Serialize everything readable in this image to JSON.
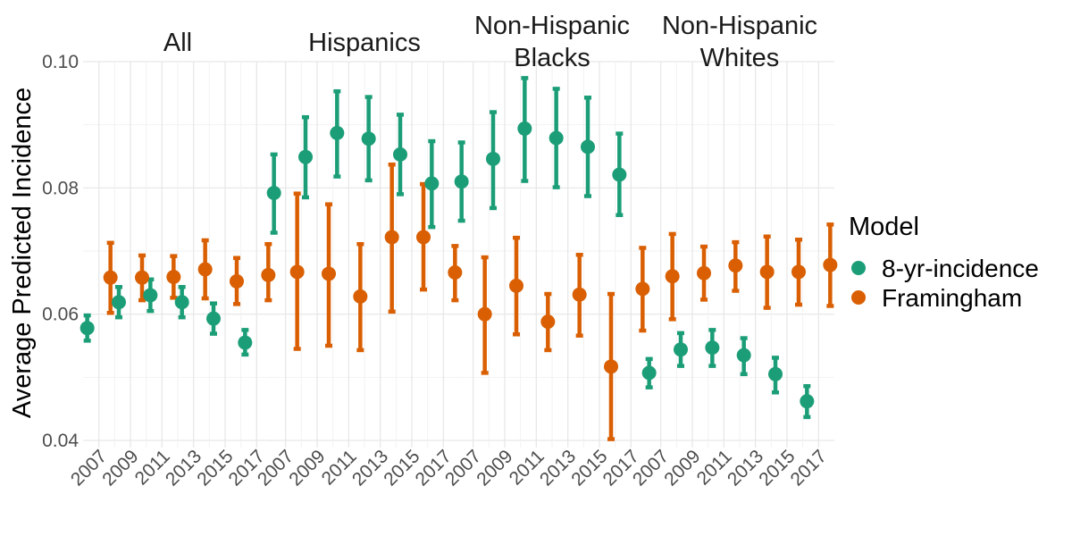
{
  "chart_data": {
    "type": "scatter",
    "subtype": "point-with-errorbars, faceted",
    "ylabel": "Average Predicted Incidence",
    "ylim": [
      0.04,
      0.1
    ],
    "yticks": [
      "0.04",
      "0.06",
      "0.08",
      "0.10"
    ],
    "xticks": [
      "2007",
      "2009",
      "2011",
      "2013",
      "2015",
      "2017"
    ],
    "grid": true,
    "legend": {
      "title": "Model",
      "position": "right"
    },
    "series": [
      {
        "name": "8-yr-incidence",
        "color": "#1b9e77"
      },
      {
        "name": "Framingham",
        "color": "#d95f02"
      }
    ],
    "panels": [
      {
        "title": "All",
        "points": [
          {
            "series": "8-yr-incidence",
            "x": 2007,
            "y": 0.0578,
            "lo": 0.0558,
            "hi": 0.0598
          },
          {
            "series": "Framingham",
            "x": 2007,
            "y": 0.0658,
            "lo": 0.0602,
            "hi": 0.0713
          },
          {
            "series": "8-yr-incidence",
            "x": 2009,
            "y": 0.0619,
            "lo": 0.0595,
            "hi": 0.0643
          },
          {
            "series": "Framingham",
            "x": 2009,
            "y": 0.0658,
            "lo": 0.0622,
            "hi": 0.0693
          },
          {
            "series": "8-yr-incidence",
            "x": 2011,
            "y": 0.063,
            "lo": 0.0605,
            "hi": 0.0655
          },
          {
            "series": "Framingham",
            "x": 2011,
            "y": 0.0659,
            "lo": 0.0626,
            "hi": 0.0692
          },
          {
            "series": "8-yr-incidence",
            "x": 2013,
            "y": 0.0619,
            "lo": 0.0595,
            "hi": 0.0643
          },
          {
            "series": "Framingham",
            "x": 2013,
            "y": 0.0671,
            "lo": 0.0625,
            "hi": 0.0717
          },
          {
            "series": "8-yr-incidence",
            "x": 2015,
            "y": 0.0593,
            "lo": 0.0569,
            "hi": 0.0617
          },
          {
            "series": "Framingham",
            "x": 2015,
            "y": 0.0652,
            "lo": 0.0616,
            "hi": 0.0689
          },
          {
            "series": "8-yr-incidence",
            "x": 2017,
            "y": 0.0555,
            "lo": 0.0536,
            "hi": 0.0575
          },
          {
            "series": "Framingham",
            "x": 2017,
            "y": 0.0662,
            "lo": 0.0622,
            "hi": 0.0711
          }
        ]
      },
      {
        "title": "Hispanics",
        "points": [
          {
            "series": "8-yr-incidence",
            "x": 2007,
            "y": 0.0792,
            "lo": 0.0729,
            "hi": 0.0853
          },
          {
            "series": "Framingham",
            "x": 2007,
            "y": 0.0667,
            "lo": 0.0545,
            "hi": 0.0791
          },
          {
            "series": "8-yr-incidence",
            "x": 2009,
            "y": 0.0849,
            "lo": 0.0785,
            "hi": 0.0912
          },
          {
            "series": "Framingham",
            "x": 2009,
            "y": 0.0664,
            "lo": 0.055,
            "hi": 0.0774
          },
          {
            "series": "8-yr-incidence",
            "x": 2011,
            "y": 0.0887,
            "lo": 0.0818,
            "hi": 0.0953
          },
          {
            "series": "Framingham",
            "x": 2011,
            "y": 0.0628,
            "lo": 0.0543,
            "hi": 0.0711
          },
          {
            "series": "8-yr-incidence",
            "x": 2013,
            "y": 0.0878,
            "lo": 0.0812,
            "hi": 0.0944
          },
          {
            "series": "Framingham",
            "x": 2013,
            "y": 0.0722,
            "lo": 0.0604,
            "hi": 0.0837
          },
          {
            "series": "8-yr-incidence",
            "x": 2015,
            "y": 0.0853,
            "lo": 0.079,
            "hi": 0.0916
          },
          {
            "series": "Framingham",
            "x": 2015,
            "y": 0.0722,
            "lo": 0.0639,
            "hi": 0.0806
          },
          {
            "series": "8-yr-incidence",
            "x": 2017,
            "y": 0.0807,
            "lo": 0.0738,
            "hi": 0.0874
          },
          {
            "series": "Framingham",
            "x": 2017,
            "y": 0.0666,
            "lo": 0.0622,
            "hi": 0.0708
          }
        ]
      },
      {
        "title": "Non-Hispanic Blacks",
        "points": [
          {
            "series": "8-yr-incidence",
            "x": 2007,
            "y": 0.081,
            "lo": 0.0748,
            "hi": 0.0872
          },
          {
            "series": "Framingham",
            "x": 2007,
            "y": 0.06,
            "lo": 0.0507,
            "hi": 0.069
          },
          {
            "series": "8-yr-incidence",
            "x": 2009,
            "y": 0.0846,
            "lo": 0.0768,
            "hi": 0.092
          },
          {
            "series": "Framingham",
            "x": 2009,
            "y": 0.0645,
            "lo": 0.0568,
            "hi": 0.0721
          },
          {
            "series": "8-yr-incidence",
            "x": 2011,
            "y": 0.0894,
            "lo": 0.0811,
            "hi": 0.0974
          },
          {
            "series": "Framingham",
            "x": 2011,
            "y": 0.0588,
            "lo": 0.0543,
            "hi": 0.0632
          },
          {
            "series": "8-yr-incidence",
            "x": 2013,
            "y": 0.0879,
            "lo": 0.0801,
            "hi": 0.0957
          },
          {
            "series": "Framingham",
            "x": 2013,
            "y": 0.0631,
            "lo": 0.0566,
            "hi": 0.0694
          },
          {
            "series": "8-yr-incidence",
            "x": 2015,
            "y": 0.0865,
            "lo": 0.0787,
            "hi": 0.0943
          },
          {
            "series": "Framingham",
            "x": 2015,
            "y": 0.0517,
            "lo": 0.0402,
            "hi": 0.0632
          },
          {
            "series": "8-yr-incidence",
            "x": 2017,
            "y": 0.0821,
            "lo": 0.0757,
            "hi": 0.0886
          },
          {
            "series": "Framingham",
            "x": 2017,
            "y": 0.064,
            "lo": 0.0574,
            "hi": 0.0705
          }
        ]
      },
      {
        "title": "Non-Hispanic Whites",
        "points": [
          {
            "series": "8-yr-incidence",
            "x": 2007,
            "y": 0.0507,
            "lo": 0.0484,
            "hi": 0.0529
          },
          {
            "series": "Framingham",
            "x": 2007,
            "y": 0.066,
            "lo": 0.0592,
            "hi": 0.0727
          },
          {
            "series": "8-yr-incidence",
            "x": 2009,
            "y": 0.0544,
            "lo": 0.0518,
            "hi": 0.057
          },
          {
            "series": "Framingham",
            "x": 2009,
            "y": 0.0665,
            "lo": 0.0623,
            "hi": 0.0707
          },
          {
            "series": "8-yr-incidence",
            "x": 2011,
            "y": 0.0547,
            "lo": 0.0518,
            "hi": 0.0575
          },
          {
            "series": "Framingham",
            "x": 2011,
            "y": 0.0677,
            "lo": 0.0637,
            "hi": 0.0714
          },
          {
            "series": "8-yr-incidence",
            "x": 2013,
            "y": 0.0535,
            "lo": 0.0505,
            "hi": 0.0562
          },
          {
            "series": "Framingham",
            "x": 2013,
            "y": 0.0667,
            "lo": 0.061,
            "hi": 0.0723
          },
          {
            "series": "8-yr-incidence",
            "x": 2015,
            "y": 0.0505,
            "lo": 0.0476,
            "hi": 0.0531
          },
          {
            "series": "Framingham",
            "x": 2015,
            "y": 0.0667,
            "lo": 0.0615,
            "hi": 0.0718
          },
          {
            "series": "8-yr-incidence",
            "x": 2017,
            "y": 0.0462,
            "lo": 0.0437,
            "hi": 0.0486
          },
          {
            "series": "Framingham",
            "x": 2017,
            "y": 0.0678,
            "lo": 0.0613,
            "hi": 0.0742
          }
        ]
      }
    ]
  }
}
